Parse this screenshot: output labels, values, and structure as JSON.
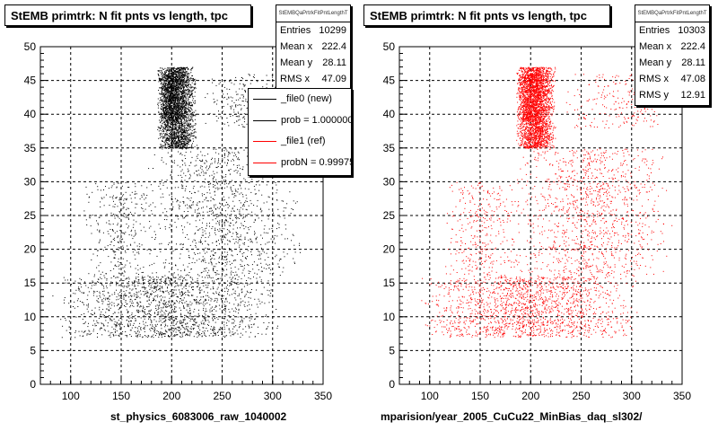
{
  "colors": {
    "ref": "#ff0000",
    "new": "#000000"
  },
  "chart_data": [
    {
      "type": "scatter",
      "title": "StEMB primtrk: N fit pnts vs length, tpc",
      "stats": {
        "name": "StEMBQaPrtrkFitPntLengthT",
        "rows": [
          {
            "key": "Entries",
            "value": "10299"
          },
          {
            "key": "Mean x",
            "value": "222.4"
          },
          {
            "key": "Mean y",
            "value": "28.11"
          },
          {
            "key": "RMS x",
            "value": "47.09"
          }
        ]
      },
      "legend": [
        {
          "label": "_file0 (new)",
          "color": "#000000"
        },
        {
          "label": "prob = 1.000000",
          "color": "#000000"
        },
        {
          "label": "_file1 (ref)",
          "color": "#ff0000"
        },
        {
          "label": "probN = 0.99975",
          "color": "#ff0000"
        }
      ],
      "xlabel": "st_physics_6083006_raw_1040002",
      "ylabel": "",
      "xlim": [
        70,
        350
      ],
      "ylim": [
        0,
        50
      ],
      "xticks": [
        "100",
        "150",
        "200",
        "250",
        "300",
        "350"
      ],
      "yticks": [
        "0",
        "5",
        "10",
        "15",
        "20",
        "25",
        "30",
        "35",
        "40",
        "45",
        "50"
      ],
      "grid": true,
      "marker_color": "#000000",
      "clusters": [
        {
          "x": [
            185,
            225
          ],
          "y": [
            35,
            47
          ],
          "weight": 0.42
        },
        {
          "x": [
            185,
            210
          ],
          "y": [
            39,
            46
          ],
          "weight": 0.08
        },
        {
          "x": [
            80,
            310
          ],
          "y": [
            7,
            16
          ],
          "weight": 0.25
        },
        {
          "x": [
            175,
            330
          ],
          "y": [
            16,
            35
          ],
          "weight": 0.17
        },
        {
          "x": [
            110,
            190
          ],
          "y": [
            16,
            30
          ],
          "weight": 0.05
        },
        {
          "x": [
            230,
            310
          ],
          "y": [
            38,
            46
          ],
          "weight": 0.03
        }
      ]
    },
    {
      "type": "scatter",
      "title": "StEMB primtrk: N fit pnts vs length, tpc",
      "stats": {
        "name": "StEMBQaPrtrkFitPntLengthT",
        "rows": [
          {
            "key": "Entries",
            "value": "10303"
          },
          {
            "key": "Mean x",
            "value": "222.4"
          },
          {
            "key": "Mean y",
            "value": "28.11"
          },
          {
            "key": "RMS x",
            "value": "47.08"
          },
          {
            "key": "RMS y",
            "value": "12.91"
          }
        ]
      },
      "xlabel": "mparision/year_2005_CuCu22_MinBias_daq_sl302/",
      "ylabel": "",
      "xlim": [
        70,
        350
      ],
      "ylim": [
        0,
        50
      ],
      "xticks": [
        "100",
        "150",
        "200",
        "250",
        "300",
        "350"
      ],
      "yticks": [
        "0",
        "5",
        "10",
        "15",
        "20",
        "25",
        "30",
        "35",
        "40",
        "45",
        "50"
      ],
      "grid": true,
      "marker_color": "#ff0000",
      "clusters": [
        {
          "x": [
            185,
            225
          ],
          "y": [
            35,
            47
          ],
          "weight": 0.42
        },
        {
          "x": [
            185,
            210
          ],
          "y": [
            39,
            46
          ],
          "weight": 0.08
        },
        {
          "x": [
            80,
            310
          ],
          "y": [
            7,
            16
          ],
          "weight": 0.25
        },
        {
          "x": [
            175,
            340
          ],
          "y": [
            16,
            35
          ],
          "weight": 0.17
        },
        {
          "x": [
            110,
            190
          ],
          "y": [
            16,
            30
          ],
          "weight": 0.05
        },
        {
          "x": [
            230,
            340
          ],
          "y": [
            38,
            46
          ],
          "weight": 0.03
        }
      ]
    }
  ]
}
